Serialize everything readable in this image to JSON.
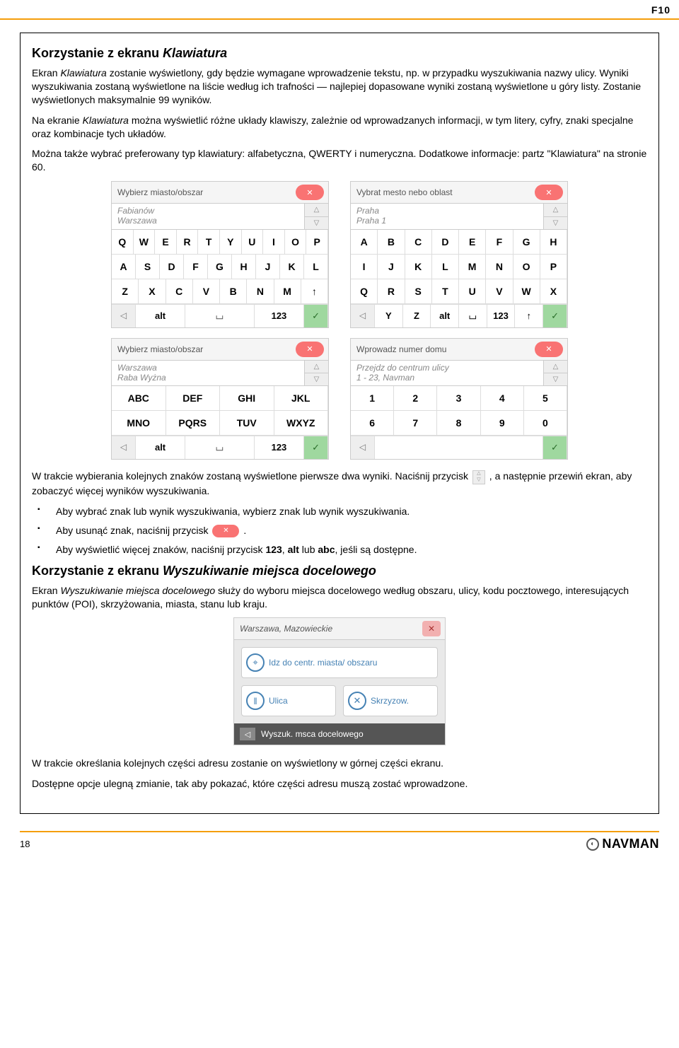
{
  "header": {
    "code": "F10"
  },
  "section1": {
    "title_prefix": "Korzystanie z ekranu ",
    "title_italic": "Klawiatura",
    "p1_a": "Ekran ",
    "p1_ital": "Klawiatura",
    "p1_b": " zostanie wyświetlony, gdy będzie wymagane wprowadzenie tekstu, np. w przypadku wyszukiwania nazwy ulicy. Wyniki wyszukiwania zostaną wyświetlone na liście według ich trafności — najlepiej dopasowane wyniki zostaną wyświetlone u góry listy. Zostanie wyświetlonych maksymalnie 99 wyników.",
    "p2_a": "Na ekranie ",
    "p2_ital": "Klawiatura",
    "p2_b": " można wyświetlić różne układy klawiszy, zależnie od wprowadzanych informacji, w tym litery, cyfry, znaki specjalne oraz kombinacje tych układów.",
    "p3": "Można także wybrać preferowany typ klawiatury: alfabetyczna, QWERTY i numeryczna. Dodatkowe informacje: partz \"Klawiatura\" na stronie 60."
  },
  "kbd1": {
    "header": "Wybierz miasto/obszar",
    "sug1": "Fabianów",
    "sug2": "Warszawa",
    "rows": [
      [
        "Q",
        "W",
        "E",
        "R",
        "T",
        "Y",
        "U",
        "I",
        "O",
        "P"
      ],
      [
        "A",
        "S",
        "D",
        "F",
        "G",
        "H",
        "J",
        "K",
        "L"
      ],
      [
        "Z",
        "X",
        "C",
        "V",
        "B",
        "N",
        "M",
        "↑"
      ]
    ],
    "bottom": {
      "alt": "alt",
      "space": "⌴",
      "num": "123"
    }
  },
  "kbd2": {
    "header": "Vybrat mesto nebo oblast",
    "sug1": "Praha",
    "sug2": "Praha 1",
    "rows": [
      [
        "A",
        "B",
        "C",
        "D",
        "E",
        "F",
        "G",
        "H"
      ],
      [
        "I",
        "J",
        "K",
        "L",
        "M",
        "N",
        "O",
        "P"
      ],
      [
        "Q",
        "R",
        "S",
        "T",
        "U",
        "V",
        "W",
        "X"
      ],
      [
        "Y",
        "Z",
        "alt",
        "⌴",
        "123",
        "↑"
      ]
    ]
  },
  "kbd3": {
    "header": "Wybierz miasto/obszar",
    "sug1": "Warszawa",
    "sug2": "Raba Wyżna",
    "rows": [
      [
        "ABC",
        "DEF",
        "GHI",
        "JKL"
      ],
      [
        "MNO",
        "PQRS",
        "TUV",
        "WXYZ"
      ]
    ],
    "bottom": {
      "alt": "alt",
      "space": "⌴",
      "num": "123"
    }
  },
  "kbd4": {
    "header": "Wprowadz numer domu",
    "sug1": "Przejdz do centrum ulicy",
    "sug2": "1 - 23, Navman",
    "rows": [
      [
        "1",
        "2",
        "3",
        "4",
        "5"
      ],
      [
        "6",
        "7",
        "8",
        "9",
        "0"
      ]
    ]
  },
  "mid": {
    "p_a": "W trakcie wybierania kolejnych znaków zostaną wyświetlone pierwsze dwa wyniki. Naciśnij przycisk ",
    "p_b": ", a następnie przewiń ekran, aby zobaczyć więcej wyników wyszukiwania.",
    "b1": "Aby wybrać znak lub wynik wyszukiwania, wybierz znak lub wynik wyszukiwania.",
    "b2_a": "Aby usunąć znak, naciśnij przycisk ",
    "b2_b": ".",
    "b3_a": "Aby wyświetlić więcej znaków, naciśnij przycisk ",
    "b3_k1": "123",
    "b3_m1": ", ",
    "b3_k2": "alt",
    "b3_m2": " lub ",
    "b3_k3": "abc",
    "b3_m3": ", jeśli są dostępne."
  },
  "section2": {
    "title_prefix": "Korzystanie z ekranu ",
    "title_italic": "Wyszukiwanie miejsca docelowego",
    "p1_a": "Ekran ",
    "p1_ital": "Wyszukiwanie miejsca docelowego",
    "p1_b": " służy do wyboru miejsca docelowego według obszaru, ulicy, kodu pocztowego, interesujących punktów (POI), skrzyżowania, miasta, stanu lub kraju."
  },
  "dest": {
    "header": "Warszawa, Mazowieckie",
    "btn1": "Idz do centr. miasta/ obszaru",
    "btn2": "Ulica",
    "btn3": "Skrzyzow.",
    "footer": "Wyszuk. msca docelowego"
  },
  "tail": {
    "p1": "W trakcie określania kolejnych części adresu zostanie on wyświetlony w górnej części ekranu.",
    "p2": "Dostępne opcje ulegną zmianie, tak aby pokazać, które części adresu muszą zostać wprowadzone."
  },
  "footer": {
    "page": "18",
    "brand": "NAVMAN"
  }
}
